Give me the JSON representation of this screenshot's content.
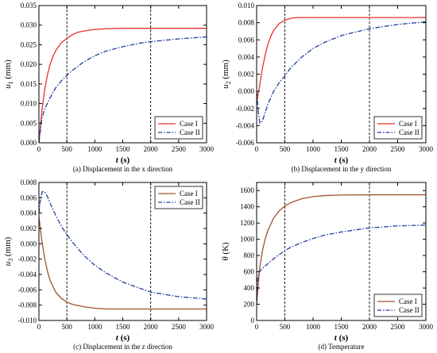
{
  "chart_data": [
    {
      "type": "line",
      "caption": "(a) Displacement in the x direction",
      "xlabel": "t (s)",
      "ylabel_main": "u",
      "ylabel_sub": "1",
      "ylabel_unit": " (mm)",
      "xlim": [
        0,
        3000
      ],
      "ylim": [
        0,
        0.035
      ],
      "xticks": [
        "0",
        "500",
        "1000",
        "1500",
        "2000",
        "2500",
        "3000"
      ],
      "yticks": [
        "0.000",
        "0.005",
        "0.010",
        "0.015",
        "0.020",
        "0.025",
        "0.030",
        "0.035"
      ],
      "vlines": [
        500,
        2000
      ],
      "legend_position": "bottom-right",
      "colors": {
        "case1": "#e8302f",
        "case2": "#1f3fa0"
      },
      "series": [
        {
          "name": "Case I",
          "style": "solid",
          "x": [
            0,
            50,
            100,
            150,
            200,
            250,
            300,
            400,
            500,
            600,
            700,
            800,
            1000,
            1200,
            1500,
            2000,
            2500,
            3000
          ],
          "y": [
            0.0,
            0.0078,
            0.0133,
            0.0172,
            0.02,
            0.022,
            0.0235,
            0.0255,
            0.0266,
            0.0276,
            0.0282,
            0.0285,
            0.0289,
            0.0291,
            0.0292,
            0.0292,
            0.0292,
            0.0292
          ]
        },
        {
          "name": "Case II",
          "style": "dashdot",
          "x": [
            0,
            50,
            100,
            200,
            300,
            400,
            500,
            600,
            800,
            1000,
            1200,
            1500,
            1800,
            2000,
            2500,
            3000
          ],
          "y": [
            0.0,
            0.006,
            0.0085,
            0.0115,
            0.014,
            0.0158,
            0.0172,
            0.0185,
            0.0206,
            0.0222,
            0.0234,
            0.0245,
            0.0254,
            0.0258,
            0.0265,
            0.027
          ]
        }
      ]
    },
    {
      "type": "line",
      "caption": "(b) Displacement in the y direction",
      "xlabel": "t (s)",
      "ylabel_main": "u",
      "ylabel_sub": "2",
      "ylabel_unit": " (mm)",
      "xlim": [
        0,
        3000
      ],
      "ylim": [
        -0.006,
        0.01
      ],
      "xticks": [
        "0",
        "500",
        "1000",
        "1500",
        "2000",
        "2500",
        "3000"
      ],
      "yticks": [
        "-0.006",
        "-0.004",
        "-0.002",
        "0.000",
        "0.002",
        "0.004",
        "0.006",
        "0.008",
        "0.010"
      ],
      "vlines": [
        500,
        2000
      ],
      "legend_position": "bottom-right",
      "colors": {
        "case1": "#e8302f",
        "case2": "#1f3fa0"
      },
      "series": [
        {
          "name": "Case I",
          "style": "solid",
          "x": [
            0,
            50,
            100,
            150,
            200,
            250,
            300,
            400,
            500,
            600,
            700,
            800,
            1000,
            1200,
            1500,
            2000,
            2500,
            3000
          ],
          "y": [
            -0.0013,
            0.0005,
            0.0026,
            0.0042,
            0.0055,
            0.0064,
            0.0071,
            0.0079,
            0.0083,
            0.0085,
            0.0086,
            0.0086,
            0.0086,
            0.0086,
            0.0086,
            0.0086,
            0.0086,
            0.0086
          ]
        },
        {
          "name": "Case II",
          "style": "dashdot",
          "x": [
            0,
            30,
            60,
            100,
            150,
            200,
            300,
            400,
            500,
            600,
            800,
            1000,
            1200,
            1500,
            2000,
            2500,
            3000
          ],
          "y": [
            0.0,
            -0.0025,
            -0.0037,
            -0.0035,
            -0.0025,
            -0.0015,
            0.0,
            0.001,
            0.0018,
            0.0027,
            0.004,
            0.005,
            0.0057,
            0.0065,
            0.0073,
            0.0078,
            0.0081
          ]
        }
      ]
    },
    {
      "type": "line",
      "caption": "(c) Displacement in the z direction",
      "xlabel": "t (s)",
      "ylabel_main": "u",
      "ylabel_sub": "3",
      "ylabel_unit": " (mm)",
      "xlim": [
        0,
        3000
      ],
      "ylim": [
        -0.01,
        0.008
      ],
      "xticks": [
        "0",
        "500",
        "1000",
        "1500",
        "2000",
        "2500",
        "3000"
      ],
      "yticks": [
        "-0.010",
        "-0.008",
        "-0.006",
        "-0.004",
        "-0.002",
        "0.000",
        "0.002",
        "0.004",
        "0.006",
        "0.008"
      ],
      "vlines": [
        500,
        2000
      ],
      "legend_position": "top-right",
      "colors": {
        "case1": "#a0522d",
        "case2": "#1f3fa0"
      },
      "series": [
        {
          "name": "Case I",
          "style": "solid",
          "x": [
            0,
            50,
            100,
            150,
            200,
            300,
            400,
            500,
            600,
            800,
            1000,
            1200,
            1500,
            2000,
            2500,
            3000
          ],
          "y": [
            0.0035,
            0.0005,
            -0.0018,
            -0.0035,
            -0.0048,
            -0.0063,
            -0.0071,
            -0.0076,
            -0.0079,
            -0.0082,
            -0.0084,
            -0.0085,
            -0.0085,
            -0.0085,
            -0.0085,
            -0.0085
          ]
        },
        {
          "name": "Case II",
          "style": "dashdot",
          "x": [
            0,
            30,
            60,
            100,
            150,
            200,
            300,
            400,
            500,
            600,
            800,
            1000,
            1200,
            1500,
            2000,
            2500,
            3000
          ],
          "y": [
            0.004,
            0.006,
            0.0068,
            0.0068,
            0.0062,
            0.0053,
            0.0037,
            0.0023,
            0.0012,
            0.0002,
            -0.0015,
            -0.0028,
            -0.0038,
            -0.005,
            -0.0063,
            -0.0069,
            -0.0072
          ]
        }
      ]
    },
    {
      "type": "line",
      "caption": "(d) Temperature",
      "xlabel": "t (s)",
      "ylabel_main": "θ",
      "ylabel_sub": "",
      "ylabel_unit": " (K)",
      "xlim": [
        0,
        3000
      ],
      "ylim": [
        0,
        1700
      ],
      "xticks": [
        "0",
        "500",
        "1000",
        "1500",
        "2000",
        "2500",
        "3000"
      ],
      "yticks": [
        "0",
        "200",
        "400",
        "600",
        "800",
        "1000",
        "1200",
        "1400",
        "1600"
      ],
      "vlines": [
        500,
        2000
      ],
      "legend_position": "bottom-right",
      "colors": {
        "case1": "#a0522d",
        "case2": "#1f3fa0"
      },
      "series": [
        {
          "name": "Case I",
          "style": "solid",
          "x": [
            0,
            50,
            100,
            150,
            200,
            300,
            400,
            500,
            600,
            800,
            1000,
            1200,
            1500,
            2000,
            2500,
            3000
          ],
          "y": [
            200,
            620,
            850,
            1000,
            1110,
            1260,
            1350,
            1410,
            1450,
            1500,
            1525,
            1538,
            1545,
            1548,
            1548,
            1548
          ]
        },
        {
          "name": "Case II",
          "style": "dashdot",
          "x": [
            0,
            20,
            50,
            100,
            200,
            300,
            400,
            500,
            600,
            800,
            1000,
            1200,
            1500,
            2000,
            2500,
            3000
          ],
          "y": [
            250,
            530,
            600,
            640,
            700,
            760,
            810,
            860,
            900,
            960,
            1010,
            1050,
            1090,
            1140,
            1165,
            1175
          ]
        }
      ]
    }
  ]
}
